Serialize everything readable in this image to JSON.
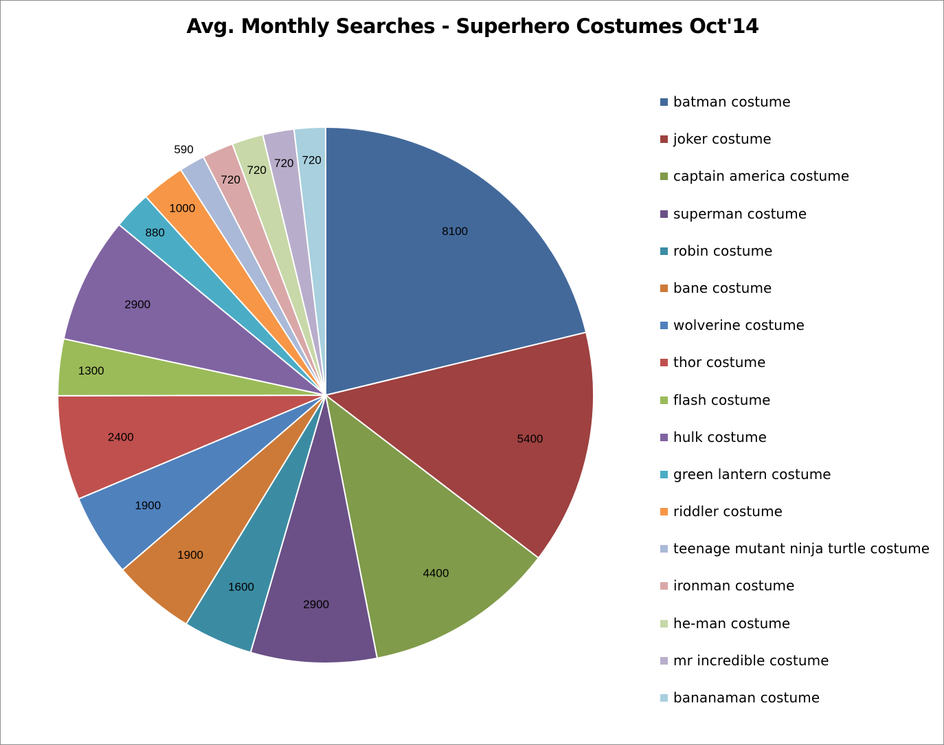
{
  "chart_data": {
    "type": "pie",
    "title": "Avg. Monthly Searches - Superhero Costumes Oct'14",
    "legend_position": "right",
    "slices": [
      {
        "label": "batman costume",
        "value": 8100,
        "color": "#43699B"
      },
      {
        "label": "joker costume",
        "value": 5400,
        "color": "#9E4140"
      },
      {
        "label": "captain america costume",
        "value": 4400,
        "color": "#809B4A"
      },
      {
        "label": "superman costume",
        "value": 2900,
        "color": "#6A5086"
      },
      {
        "label": "robin costume",
        "value": 1600,
        "color": "#3B8CA3"
      },
      {
        "label": "bane costume",
        "value": 1900,
        "color": "#CD7A38"
      },
      {
        "label": "wolverine costume",
        "value": 1900,
        "color": "#4F81BD"
      },
      {
        "label": "thor costume",
        "value": 2400,
        "color": "#C0504D"
      },
      {
        "label": "flash costume",
        "value": 1300,
        "color": "#9BBB59"
      },
      {
        "label": "hulk costume",
        "value": 2900,
        "color": "#8064A2"
      },
      {
        "label": "green lantern costume",
        "value": 880,
        "color": "#4BACC6"
      },
      {
        "label": "riddler costume",
        "value": 1000,
        "color": "#F79646"
      },
      {
        "label": "teenage mutant ninja turtle costume",
        "value": 590,
        "color": "#AAB9D8"
      },
      {
        "label": "ironman costume",
        "value": 720,
        "color": "#D9A7A7"
      },
      {
        "label": "he-man costume",
        "value": 720,
        "color": "#C8D8A8"
      },
      {
        "label": "mr incredible costume",
        "value": 720,
        "color": "#B8AECB"
      },
      {
        "label": "bananaman costume",
        "value": 720,
        "color": "#A8D0DE"
      }
    ]
  }
}
